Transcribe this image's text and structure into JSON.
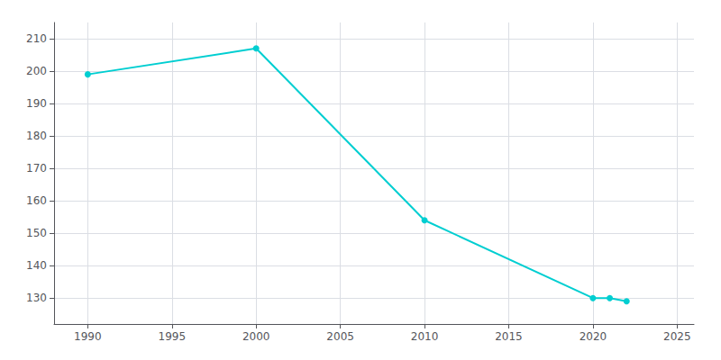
{
  "chart_data": {
    "type": "line",
    "x": [
      1990,
      2000,
      2010,
      2020,
      2021,
      2022
    ],
    "values": [
      199,
      207,
      154,
      130,
      130,
      129
    ],
    "color": "#00CED1",
    "marker": "circle",
    "xlim": [
      1988,
      2026
    ],
    "ylim": [
      122,
      215
    ],
    "xticks": [
      1990,
      1995,
      2000,
      2005,
      2010,
      2015,
      2020,
      2025
    ],
    "yticks": [
      130,
      140,
      150,
      160,
      170,
      180,
      190,
      200,
      210
    ],
    "grid": true
  }
}
